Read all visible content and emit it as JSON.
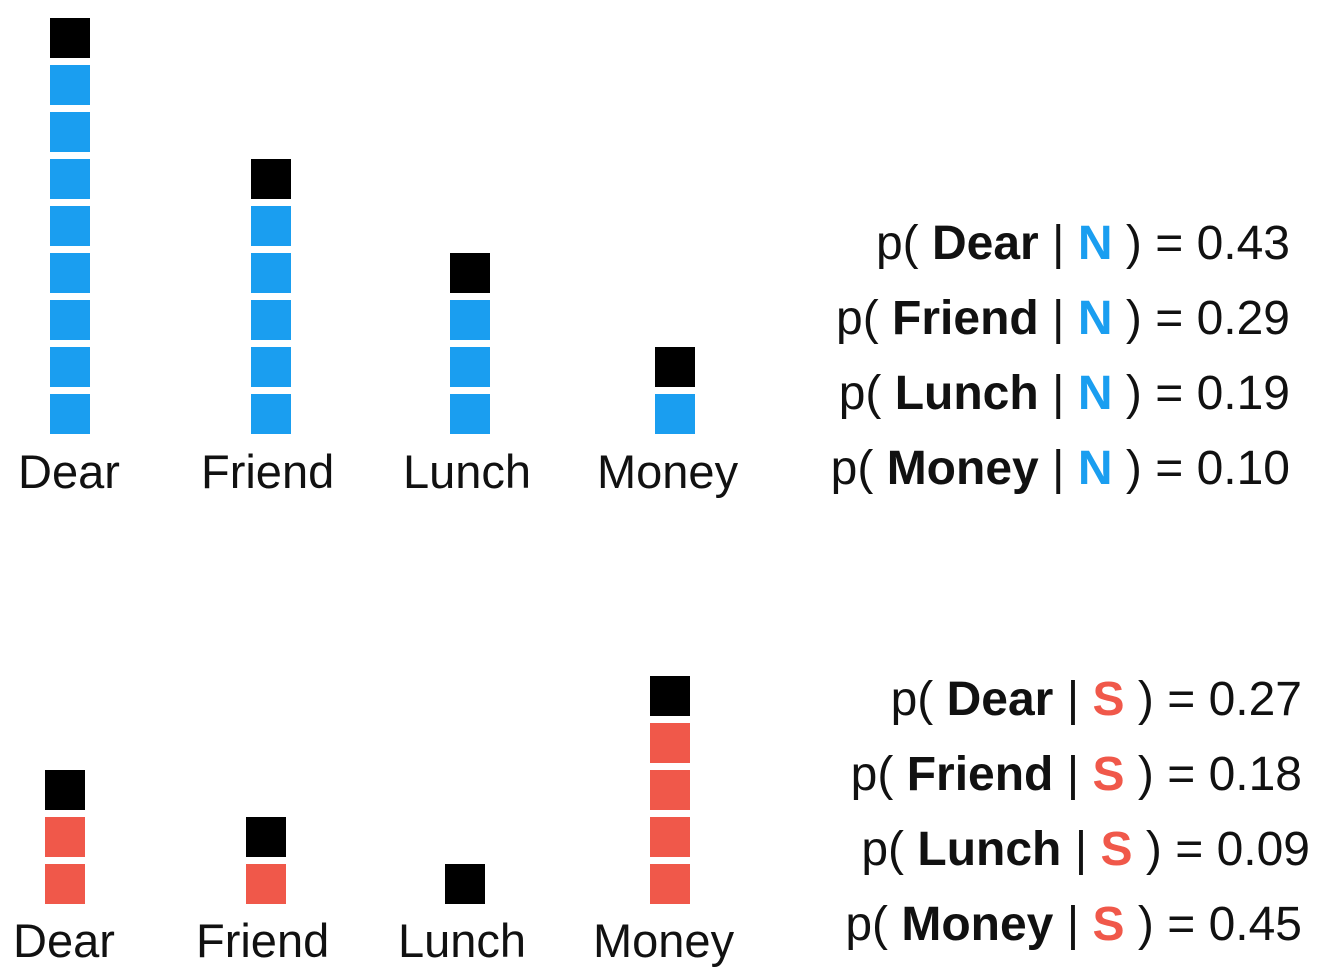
{
  "colors": {
    "normal": "#1a9ef0",
    "spam": "#f0584a",
    "pseudo": "#000000"
  },
  "normal": {
    "class_letter": "N",
    "words": [
      {
        "label": "Dear",
        "count": 8,
        "pseudocount": 1
      },
      {
        "label": "Friend",
        "count": 5,
        "pseudocount": 1
      },
      {
        "label": "Lunch",
        "count": 3,
        "pseudocount": 1
      },
      {
        "label": "Money",
        "count": 1,
        "pseudocount": 1
      }
    ],
    "formulas": [
      {
        "p": "p(",
        "word": "Dear",
        "bar": "|",
        "cls": "N",
        "close": ") =",
        "value": "0.43"
      },
      {
        "p": "p(",
        "word": "Friend",
        "bar": "|",
        "cls": "N",
        "close": ") =",
        "value": "0.29"
      },
      {
        "p": "p(",
        "word": "Lunch",
        "bar": "|",
        "cls": "N",
        "close": ") =",
        "value": "0.19"
      },
      {
        "p": "p(",
        "word": "Money",
        "bar": "|",
        "cls": "N",
        "close": ") =",
        "value": "0.10"
      }
    ]
  },
  "spam": {
    "class_letter": "S",
    "words": [
      {
        "label": "Dear",
        "count": 2,
        "pseudocount": 1
      },
      {
        "label": "Friend",
        "count": 1,
        "pseudocount": 1
      },
      {
        "label": "Lunch",
        "count": 0,
        "pseudocount": 1
      },
      {
        "label": "Money",
        "count": 4,
        "pseudocount": 1
      }
    ],
    "formulas": [
      {
        "p": "p(",
        "word": "Dear",
        "bar": "|",
        "cls": "S",
        "close": ") =",
        "value": "0.27"
      },
      {
        "p": "p(",
        "word": "Friend",
        "bar": "|",
        "cls": "S",
        "close": ") =",
        "value": "0.18"
      },
      {
        "p": "p(",
        "word": "Lunch",
        "bar": "|",
        "cls": "S",
        "close": ") =",
        "value": "0.09"
      },
      {
        "p": "p(",
        "word": "Money",
        "bar": "|",
        "cls": "S",
        "close": ") =",
        "value": "0.45"
      }
    ]
  }
}
